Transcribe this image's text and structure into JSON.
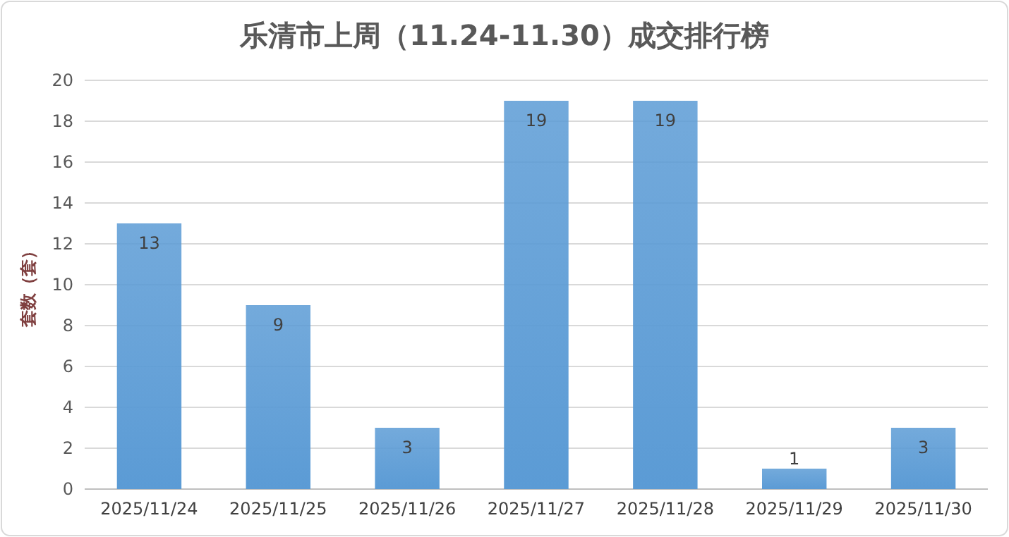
{
  "chart_data": {
    "type": "bar",
    "title": "乐清市上周（11.24-11.30）成交排行榜",
    "ylabel": "套数（套）",
    "categories": [
      "2025/11/24",
      "2025/11/25",
      "2025/11/26",
      "2025/11/27",
      "2025/11/28",
      "2025/11/29",
      "2025/11/30"
    ],
    "values": [
      13,
      9,
      3,
      19,
      19,
      1,
      3
    ],
    "color": "#5b9bd5",
    "ylim": [
      0,
      20
    ],
    "yticks": [
      0,
      2,
      4,
      6,
      8,
      10,
      12,
      14,
      16,
      18,
      20
    ],
    "grid": "y",
    "data_labels": true
  }
}
